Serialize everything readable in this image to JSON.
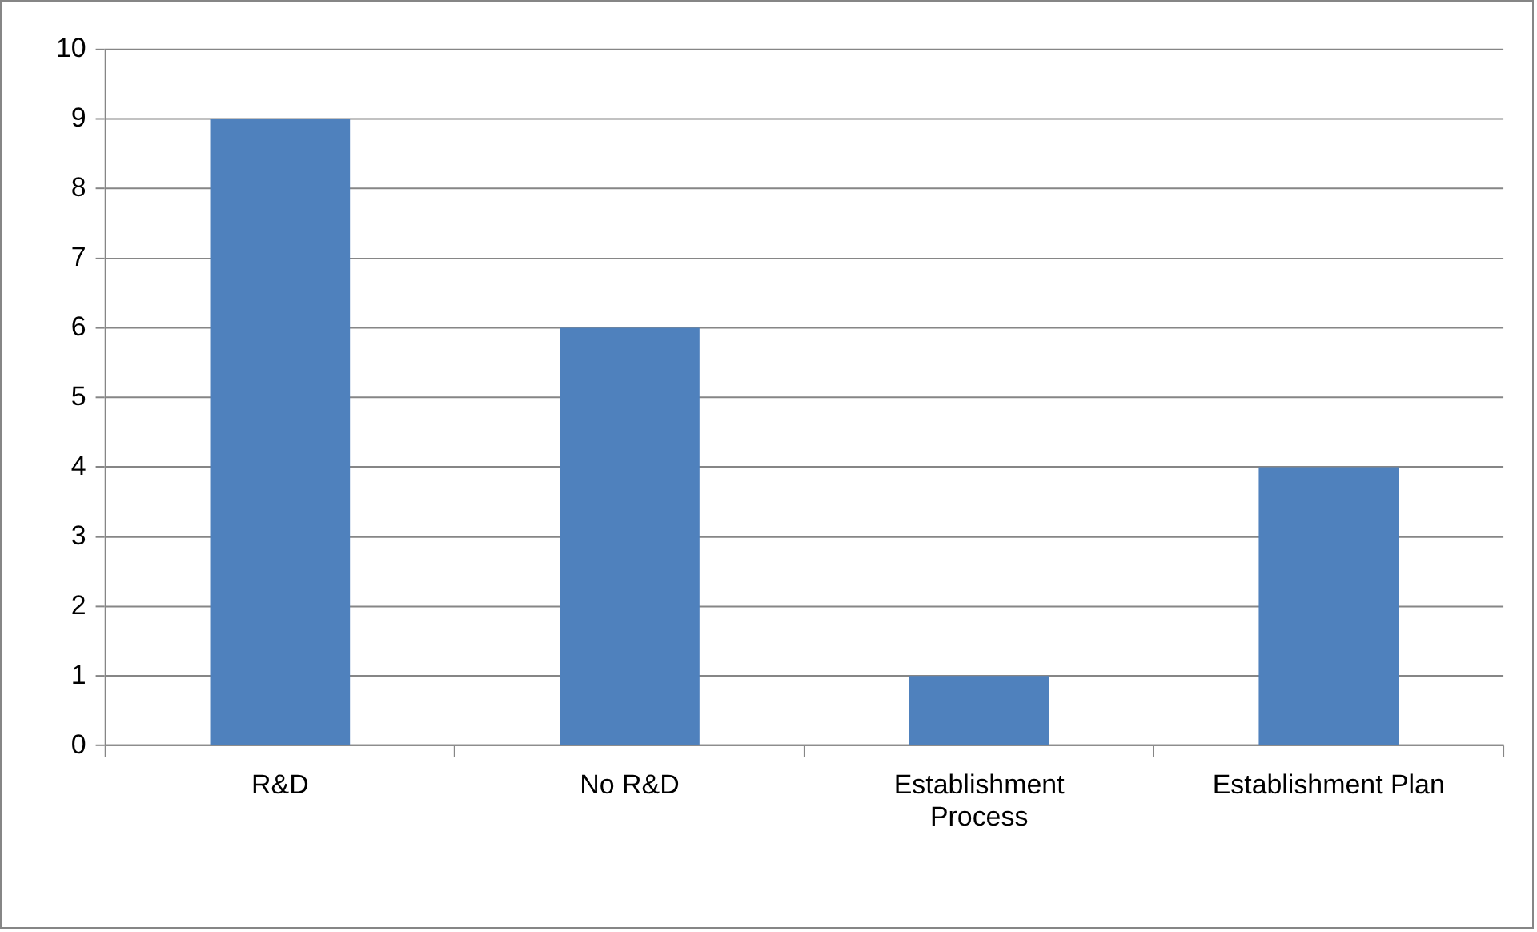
{
  "chart_data": {
    "type": "bar",
    "categories": [
      "R&D",
      "No R&D",
      "Establishment Process",
      "Establishment Plan"
    ],
    "values": [
      9,
      6,
      1,
      4
    ],
    "color": "#4f81bd",
    "ylim": [
      0,
      10
    ],
    "yticks": [
      0,
      1,
      2,
      3,
      4,
      5,
      6,
      7,
      8,
      9,
      10
    ],
    "grid": "y",
    "legend": false
  }
}
